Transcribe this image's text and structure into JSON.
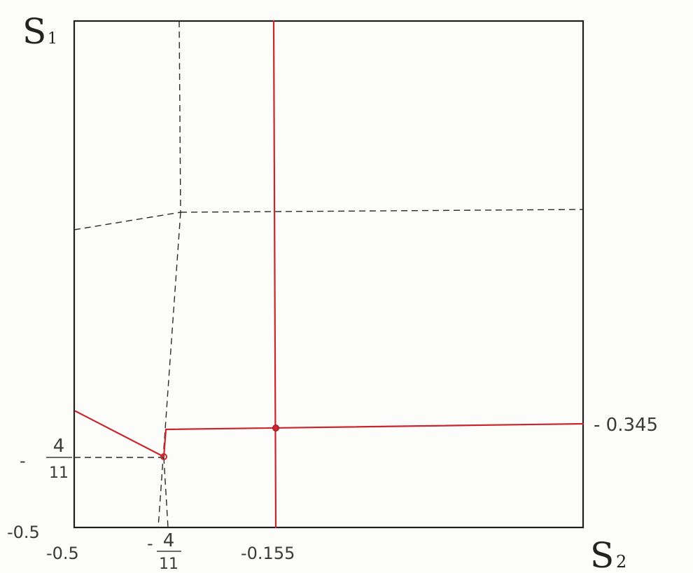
{
  "axes": {
    "y_label_main": "S",
    "y_label_sub": "1",
    "x_label_main": "S",
    "x_label_sub": "2"
  },
  "ticks": {
    "y_fraction": {
      "minus": "-",
      "numerator": "4",
      "denominator": "11"
    },
    "y_min": "-0.5",
    "x_min": "-0.5",
    "x_fraction": {
      "minus": "-",
      "numerator": "4",
      "denominator": "11"
    },
    "x_mid": "-0.155",
    "right_value": "- 0.345"
  },
  "colors": {
    "frame": "#1f1f1f",
    "dashed": "#2a2a2a",
    "red": "#c9252c",
    "background": "#fcfcfa"
  }
}
